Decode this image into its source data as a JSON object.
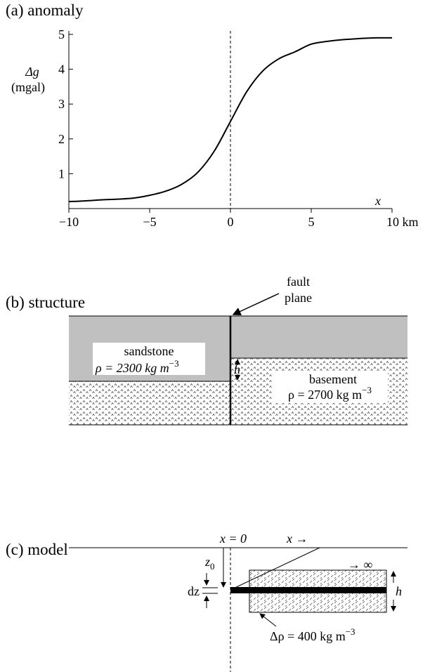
{
  "chart_data": {
    "type": "line",
    "title": "(a) anomaly",
    "y_label": "Δg",
    "y_unit": "(mgal)",
    "x_label": "x",
    "x": [
      -10,
      -9,
      -8,
      -7,
      -6,
      -5,
      -4,
      -3,
      -2,
      -1,
      0,
      1,
      2,
      3,
      4,
      5,
      6,
      7,
      8,
      9,
      10
    ],
    "values": [
      0.2,
      0.22,
      0.25,
      0.27,
      0.3,
      0.38,
      0.5,
      0.7,
      1.05,
      1.65,
      2.5,
      3.35,
      3.95,
      4.3,
      4.5,
      4.72,
      4.8,
      4.85,
      4.88,
      4.9,
      4.9
    ],
    "color": "#000000",
    "xlim": [
      -10,
      10
    ],
    "ylim": [
      0,
      5.1
    ],
    "xticks": [
      {
        "value": -10,
        "label": "−10"
      },
      {
        "value": -5,
        "label": "−5"
      },
      0,
      5,
      {
        "value": 10,
        "label": "10 km"
      }
    ],
    "yticks": [
      1,
      2,
      3,
      4,
      5
    ]
  },
  "structure": {
    "title": "(b) structure",
    "fault_label": [
      "fault",
      "plane"
    ],
    "sandstone": {
      "name": "sandstone",
      "density": "ρ = 2300 kg m",
      "exponent": "−3"
    },
    "basement": {
      "name": "basement",
      "density": "ρ = 2700 kg m",
      "exponent": "−3"
    },
    "throw": "h"
  },
  "model": {
    "title": "(c) model",
    "origin": "x = 0",
    "x_arrow": "x →",
    "infinity": "→ ∞",
    "depth": "z",
    "depth_sub": "0",
    "thickness_element": "dz",
    "slab_thickness": "h",
    "contrast": "Δρ = 400 kg m",
    "contrast_exponent": "−3"
  }
}
